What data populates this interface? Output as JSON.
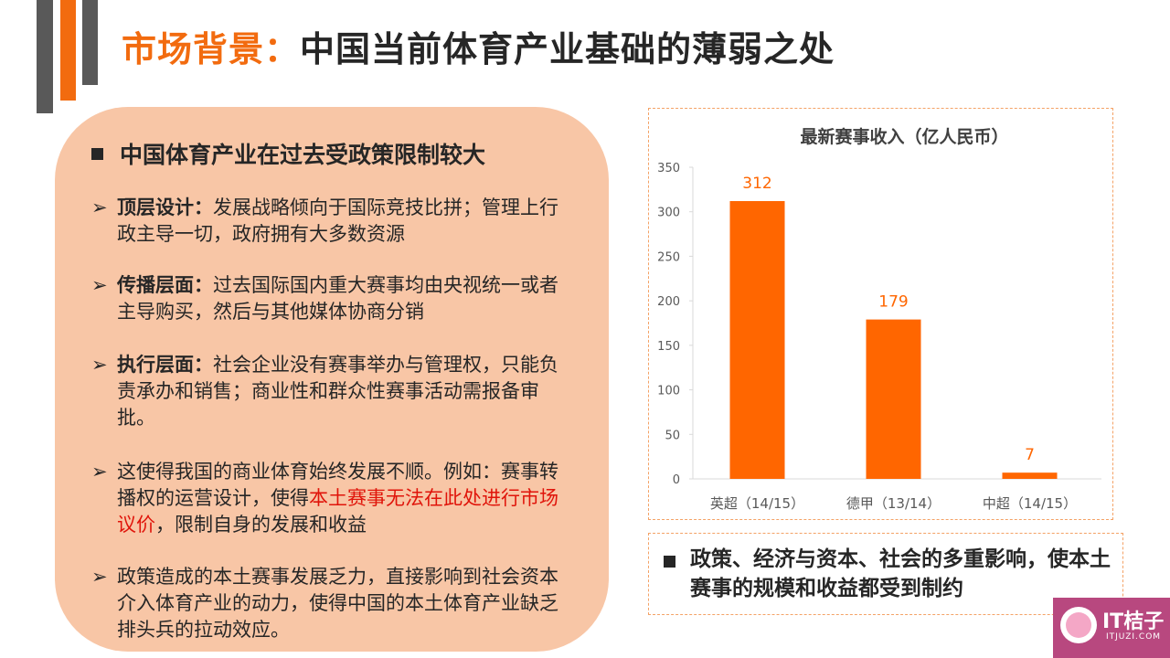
{
  "title": {
    "highlight": "市场背景：",
    "rest": "中国当前体育产业基础的薄弱之处"
  },
  "left_panel": {
    "heading": "中国体育产业在过去受政策限制较大",
    "items": [
      {
        "bold": "顶层设计：",
        "text": "发展战略倾向于国际竞技比拼；管理上行政主导一切，政府拥有大多数资源"
      },
      {
        "bold": "传播层面：",
        "text": "过去国际国内重大赛事均由央视统一或者主导购买，然后与其他媒体协商分销"
      },
      {
        "bold": "执行层面：",
        "text": "社会企业没有赛事举办与管理权，只能负责承办和销售；商业性和群众性赛事活动需报备审批。"
      },
      {
        "text_before": "这使得我国的商业体育始终发展不顺。例如：赛事转播权的运营设计，使得",
        "highlight": "本土赛事无法在此处进行市场议价",
        "text_after": "，限制自身的发展和收益"
      },
      {
        "text": "政策造成的本土赛事发展乏力，直接影响到社会资本介入体育产业的动力，使得中国的本土体育产业缺乏排头兵的拉动效应。"
      }
    ]
  },
  "chart_data": {
    "type": "bar",
    "title": "最新赛事收入（亿人民币）",
    "categories": [
      "英超（14/15）",
      "德甲（13/14）",
      "中超（14/15）"
    ],
    "values": [
      312,
      179,
      7
    ],
    "ylim": [
      0,
      350
    ],
    "yticks": [
      0,
      50,
      100,
      150,
      200,
      250,
      300,
      350
    ],
    "bar_color": "#ff6600",
    "data_labels": true,
    "grid": false
  },
  "note": "政策、经济与资本、社会的多重影响，使本土赛事的规模和收益都受到制约",
  "logo": {
    "name": "IT桔子",
    "sub": "ITJUZI.COM"
  },
  "colors": {
    "accent": "#f26b0f",
    "panel": "#f8c6a6",
    "dark": "#595959",
    "red": "#e0140a"
  }
}
